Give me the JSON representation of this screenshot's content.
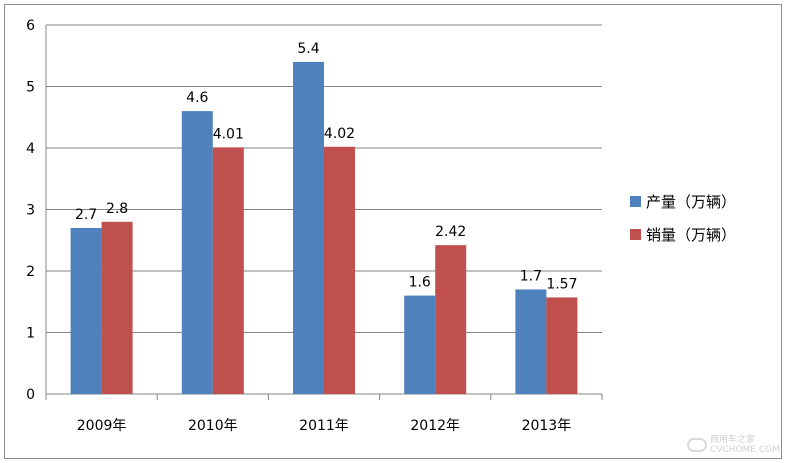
{
  "chart_data": {
    "type": "bar",
    "categories": [
      "2009年",
      "2010年",
      "2011年",
      "2012年",
      "2013年"
    ],
    "series": [
      {
        "name": "产量（万辆）",
        "values": [
          2.7,
          4.6,
          5.4,
          1.6,
          1.7
        ],
        "color": "#4f81bd",
        "labels": [
          "2.7",
          "4.6",
          "5.4",
          "1.6",
          "1.7"
        ]
      },
      {
        "name": "销量（万辆）",
        "values": [
          2.8,
          4.01,
          4.02,
          2.42,
          1.57
        ],
        "color": "#c0504d",
        "labels": [
          "2.8",
          "4.01",
          "4.02",
          "2.42",
          "1.57"
        ]
      }
    ],
    "y_ticks": [
      "0",
      "1",
      "2",
      "3",
      "4",
      "5",
      "6"
    ],
    "ylim": [
      0,
      6
    ],
    "grid": true,
    "legend_position": "right"
  },
  "watermark": {
    "line1": "商用车之家",
    "line2": "CVCHOME.COM"
  }
}
